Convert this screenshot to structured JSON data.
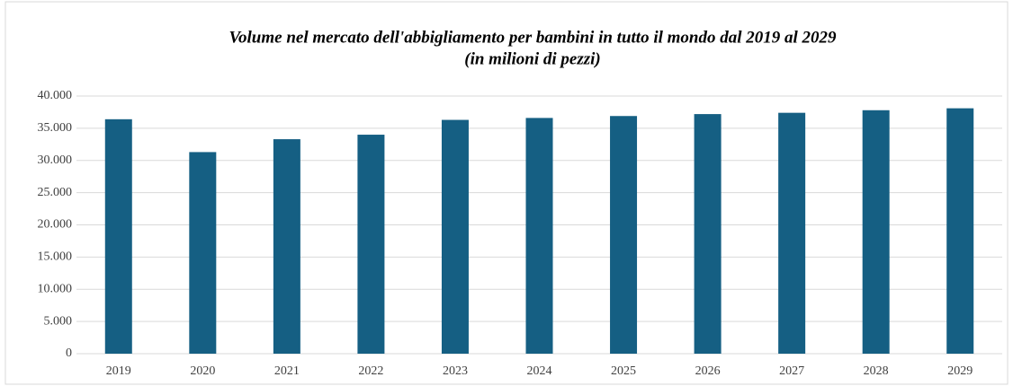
{
  "chart_data": {
    "type": "bar",
    "title": "Volume nel mercato dell'abbigliamento per bambini in tutto il mondo dal 2019 al 2029",
    "subtitle": "(in milioni di pezzi)",
    "categories": [
      "2019",
      "2020",
      "2021",
      "2022",
      "2023",
      "2024",
      "2025",
      "2026",
      "2027",
      "2028",
      "2029"
    ],
    "values": [
      36400,
      31300,
      33300,
      34000,
      36300,
      36600,
      36900,
      37200,
      37400,
      37800,
      38100
    ],
    "color": "#155f83",
    "ylim": [
      0,
      40000
    ],
    "yticks": [
      0,
      {
        "value": 5000,
        "label": "5.000"
      },
      {
        "value": 10000,
        "label": "10.000"
      },
      {
        "value": 15000,
        "label": "15.000"
      },
      {
        "value": 20000,
        "label": "20.000"
      },
      {
        "value": 25000,
        "label": "25.000"
      },
      {
        "value": 30000,
        "label": "30.000"
      },
      {
        "value": 35000,
        "label": "35.000"
      },
      {
        "value": 40000,
        "label": "40.000"
      }
    ],
    "grid": true
  }
}
